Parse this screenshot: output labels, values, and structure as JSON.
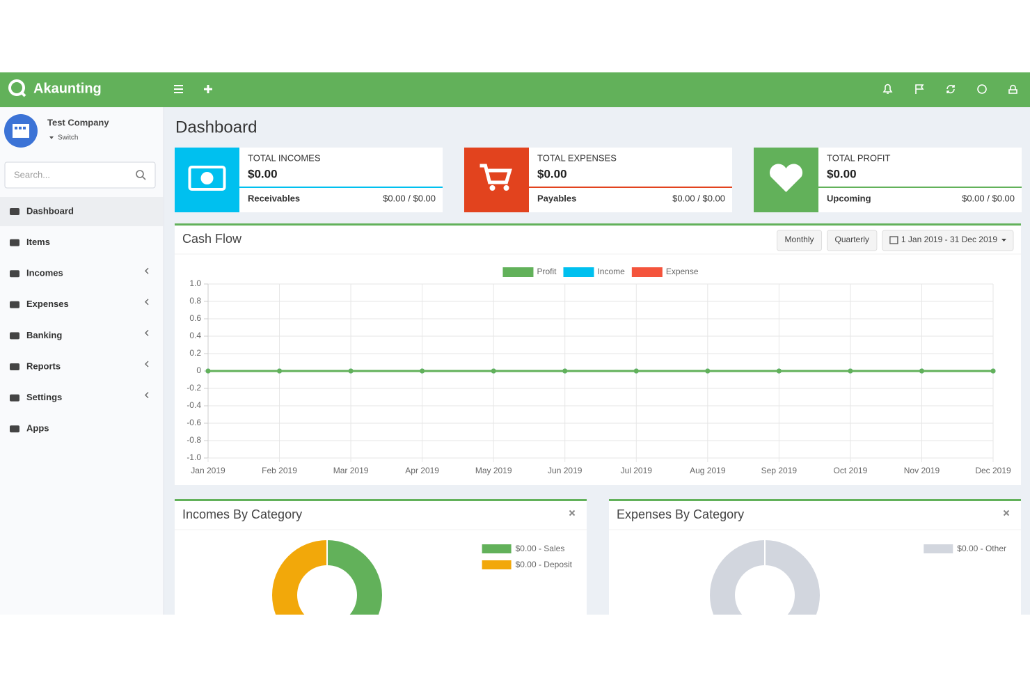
{
  "header": {
    "brand": "Akaunting"
  },
  "sidebar": {
    "company": "Test Company",
    "switch": "Switch",
    "search_placeholder": "Search...",
    "menu": [
      "Dashboard",
      "Items",
      "Incomes",
      "Expenses",
      "Banking",
      "Reports",
      "Settings",
      "Apps"
    ]
  },
  "page_title": "Dashboard",
  "cards": [
    {
      "label": "TOTAL INCOMES",
      "amount": "$0.00",
      "sub_label": "Receivables",
      "sub_value": "$0.00 / $0.00"
    },
    {
      "label": "TOTAL EXPENSES",
      "amount": "$0.00",
      "sub_label": "Payables",
      "sub_value": "$0.00 / $0.00"
    },
    {
      "label": "TOTAL PROFIT",
      "amount": "$0.00",
      "sub_label": "Upcoming",
      "sub_value": "$0.00 / $0.00"
    }
  ],
  "cash_flow_buttons": [
    "Monthly",
    "Quarterly",
    "1 Jan 2019 - 31 Dec 2019"
  ],
  "chart_data": [
    {
      "type": "line",
      "title": "Cash Flow",
      "categories": [
        "Jan 2019",
        "Feb 2019",
        "Mar 2019",
        "Apr 2019",
        "May 2019",
        "Jun 2019",
        "Jul 2019",
        "Aug 2019",
        "Sep 2019",
        "Oct 2019",
        "Nov 2019",
        "Dec 2019"
      ],
      "series": [
        {
          "name": "Profit",
          "color": "#62b15a",
          "values": [
            0,
            0,
            0,
            0,
            0,
            0,
            0,
            0,
            0,
            0,
            0,
            0
          ]
        },
        {
          "name": "Income",
          "color": "#00c0ef",
          "values": [
            0,
            0,
            0,
            0,
            0,
            0,
            0,
            0,
            0,
            0,
            0,
            0
          ]
        },
        {
          "name": "Expense",
          "color": "#f4543c",
          "values": [
            0,
            0,
            0,
            0,
            0,
            0,
            0,
            0,
            0,
            0,
            0,
            0
          ]
        }
      ],
      "ylim": [
        -1,
        1
      ],
      "yticks": [
        {
          "value": 1,
          "label": "1.0"
        },
        0.8,
        0.6,
        0.4,
        0.2,
        0,
        -0.2,
        -0.4,
        -0.6,
        -0.8,
        {
          "value": -1,
          "label": "-1.0"
        }
      ],
      "grid": true,
      "legend": "top"
    },
    {
      "type": "pie",
      "title": "Incomes By Category",
      "categories": [
        "$0.00 - Sales",
        "$0.00 - Deposit"
      ],
      "values": [
        0,
        0
      ],
      "colors": [
        "#62b15a",
        "#f2a80a"
      ],
      "legend": "top-right"
    },
    {
      "type": "pie",
      "title": "Expenses By Category",
      "categories": [
        "$0.00 - Other"
      ],
      "values": [
        0
      ],
      "colors": [
        "#d2d6de"
      ],
      "legend": "top-right"
    }
  ]
}
